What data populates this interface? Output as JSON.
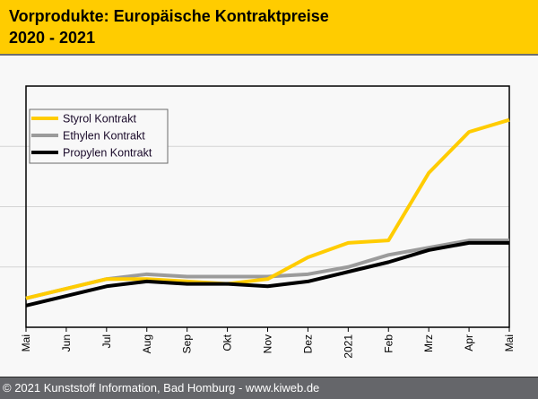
{
  "header": {
    "title_line1": "Vorprodukte: Europäische Kontraktpreise",
    "title_line2": "2020 - 2021"
  },
  "footer": {
    "text": "© 2021 Kunststoff Information, Bad Homburg - www.kiweb.de"
  },
  "colors": {
    "brand_yellow": "#ffcc00",
    "footer_grey": "#65666a",
    "styrol": "#ffcc00",
    "ethylen": "#9b9b9b",
    "propylen": "#000000",
    "gridline": "#d4d4d4"
  },
  "chart_data": {
    "type": "line",
    "title": "Vorprodukte: Europäische Kontraktpreise 2020 - 2021",
    "xlabel": "",
    "ylabel": "",
    "y_scale_note": "No y-axis labels shown; values are relative index (plot bottom = 0, plot top = 100)",
    "ylim": [
      0,
      100
    ],
    "y_gridlines": [
      25,
      50,
      75
    ],
    "grid": true,
    "legend_position": "top-left",
    "categories": [
      "Mai",
      "Jun",
      "Jul",
      "Aug",
      "Sep",
      "Okt",
      "Nov",
      "Dez",
      "2021",
      "Feb",
      "Mrz",
      "Apr",
      "Mai"
    ],
    "series": [
      {
        "name": "Styrol Kontrakt",
        "color": "#ffcc00",
        "values": [
          12,
          16,
          20,
          20,
          19,
          18,
          20,
          29,
          35,
          36,
          64,
          81,
          86
        ]
      },
      {
        "name": "Ethylen Kontrakt",
        "color": "#9b9b9b",
        "values": [
          12,
          16,
          20,
          22,
          21,
          21,
          21,
          22,
          25,
          30,
          33,
          36,
          36
        ]
      },
      {
        "name": "Propylen Kontrakt",
        "color": "#000000",
        "values": [
          9,
          13,
          17,
          19,
          18,
          18,
          17,
          19,
          23,
          27,
          32,
          35,
          35
        ]
      }
    ],
    "draw_order": [
      "Ethylen Kontrakt",
      "Styrol Kontrakt",
      "Propylen Kontrakt"
    ]
  }
}
